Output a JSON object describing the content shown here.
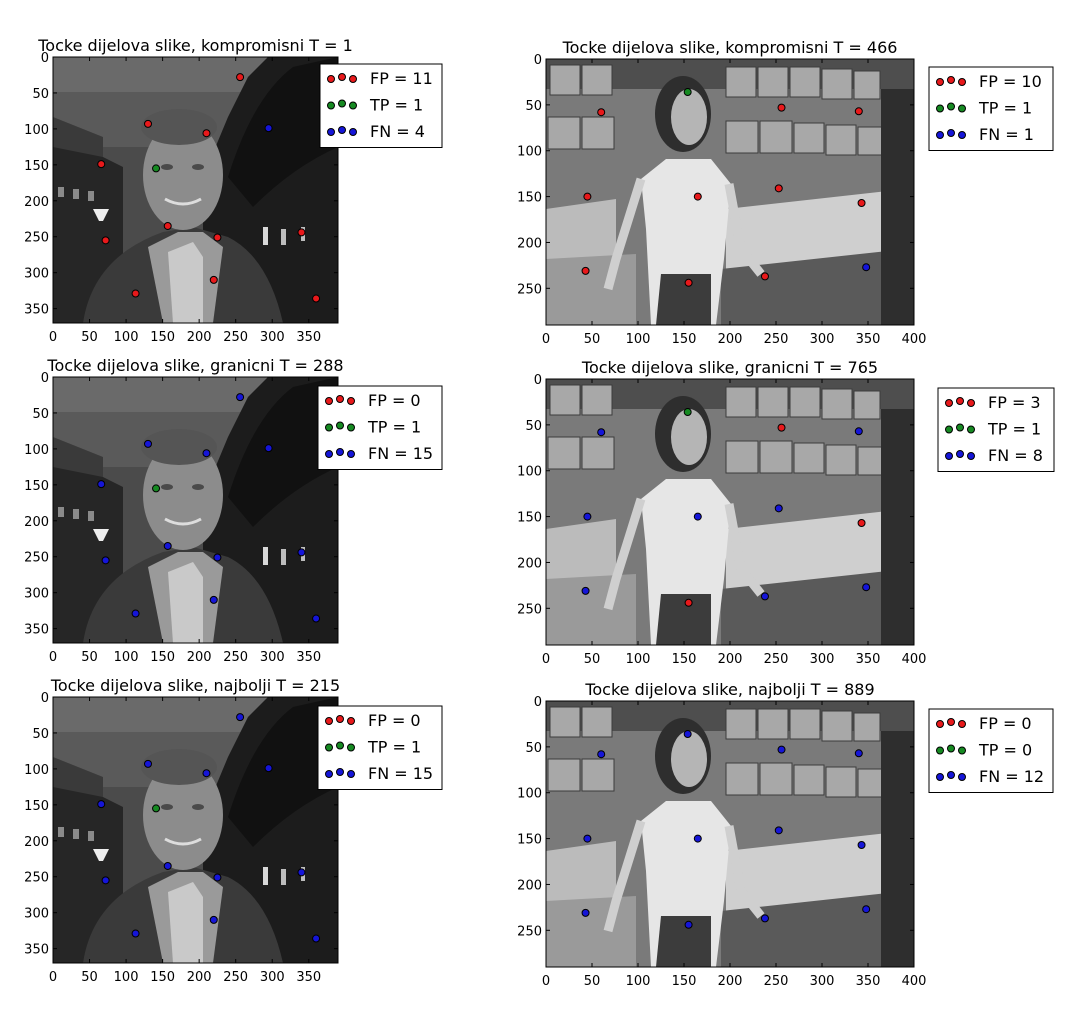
{
  "colors": {
    "FP": "#e8191b",
    "TP": "#168a22",
    "FN": "#1515d8"
  },
  "chart_data": [
    {
      "type": "scatter",
      "title": "Tocke dijelova slike, kompromisni T = 1",
      "background": "grayscale photo of a smiling man at dusk",
      "xlim": [
        0,
        390
      ],
      "ylim": [
        370,
        0
      ],
      "xticks": [
        0,
        50,
        100,
        150,
        200,
        250,
        300,
        350
      ],
      "yticks": [
        0,
        50,
        100,
        150,
        200,
        250,
        300,
        350
      ],
      "legend": [
        {
          "key": "FP",
          "label": "FP = 11"
        },
        {
          "key": "TP",
          "label": "TP = 1"
        },
        {
          "key": "FN",
          "label": "FN = 4"
        }
      ],
      "points": [
        {
          "x": 256,
          "y": 28,
          "cls": "FP"
        },
        {
          "x": 130,
          "y": 93,
          "cls": "FP"
        },
        {
          "x": 210,
          "y": 106,
          "cls": "FP"
        },
        {
          "x": 66,
          "y": 149,
          "cls": "FP"
        },
        {
          "x": 157,
          "y": 235,
          "cls": "FP"
        },
        {
          "x": 225,
          "y": 251,
          "cls": "FP"
        },
        {
          "x": 72,
          "y": 255,
          "cls": "FP"
        },
        {
          "x": 340,
          "y": 244,
          "cls": "FP"
        },
        {
          "x": 220,
          "y": 310,
          "cls": "FP"
        },
        {
          "x": 113,
          "y": 329,
          "cls": "FP"
        },
        {
          "x": 360,
          "y": 336,
          "cls": "FP"
        },
        {
          "x": 141,
          "y": 155,
          "cls": "TP"
        },
        {
          "x": 295,
          "y": 99,
          "cls": "FN"
        }
      ]
    },
    {
      "type": "scatter",
      "title": "Tocke dijelova slike, kompromisni T = 466",
      "background": "grayscale photo of a woman in a record store",
      "xlim": [
        0,
        400
      ],
      "ylim": [
        290,
        0
      ],
      "xticks": [
        0,
        50,
        100,
        150,
        200,
        250,
        300,
        350,
        400
      ],
      "yticks": [
        0,
        50,
        100,
        150,
        200,
        250
      ],
      "legend": [
        {
          "key": "FP",
          "label": "FP = 10"
        },
        {
          "key": "TP",
          "label": "TP = 1"
        },
        {
          "key": "FN",
          "label": "FN = 1"
        }
      ],
      "points": [
        {
          "x": 60,
          "y": 58,
          "cls": "FP"
        },
        {
          "x": 256,
          "y": 53,
          "cls": "FP"
        },
        {
          "x": 340,
          "y": 57,
          "cls": "FP"
        },
        {
          "x": 45,
          "y": 150,
          "cls": "FP"
        },
        {
          "x": 165,
          "y": 150,
          "cls": "FP"
        },
        {
          "x": 253,
          "y": 141,
          "cls": "FP"
        },
        {
          "x": 343,
          "y": 157,
          "cls": "FP"
        },
        {
          "x": 43,
          "y": 231,
          "cls": "FP"
        },
        {
          "x": 238,
          "y": 237,
          "cls": "FP"
        },
        {
          "x": 155,
          "y": 244,
          "cls": "FP"
        },
        {
          "x": 154,
          "y": 36,
          "cls": "TP"
        },
        {
          "x": 348,
          "y": 227,
          "cls": "FN"
        }
      ]
    },
    {
      "type": "scatter",
      "title": "Tocke dijelova slike, granicni T = 288",
      "background": "grayscale photo of a smiling man at dusk",
      "xlim": [
        0,
        390
      ],
      "ylim": [
        370,
        0
      ],
      "xticks": [
        0,
        50,
        100,
        150,
        200,
        250,
        300,
        350
      ],
      "yticks": [
        0,
        50,
        100,
        150,
        200,
        250,
        300,
        350
      ],
      "legend": [
        {
          "key": "FP",
          "label": "FP = 0"
        },
        {
          "key": "TP",
          "label": "TP = 1"
        },
        {
          "key": "FN",
          "label": "FN = 15"
        }
      ],
      "points": [
        {
          "x": 141,
          "y": 155,
          "cls": "TP"
        },
        {
          "x": 256,
          "y": 28,
          "cls": "FN"
        },
        {
          "x": 130,
          "y": 93,
          "cls": "FN"
        },
        {
          "x": 210,
          "y": 106,
          "cls": "FN"
        },
        {
          "x": 295,
          "y": 99,
          "cls": "FN"
        },
        {
          "x": 66,
          "y": 149,
          "cls": "FN"
        },
        {
          "x": 157,
          "y": 235,
          "cls": "FN"
        },
        {
          "x": 225,
          "y": 251,
          "cls": "FN"
        },
        {
          "x": 72,
          "y": 255,
          "cls": "FN"
        },
        {
          "x": 340,
          "y": 244,
          "cls": "FN"
        },
        {
          "x": 220,
          "y": 310,
          "cls": "FN"
        },
        {
          "x": 113,
          "y": 329,
          "cls": "FN"
        },
        {
          "x": 360,
          "y": 336,
          "cls": "FN"
        }
      ]
    },
    {
      "type": "scatter",
      "title": "Tocke dijelova slike, granicni T = 765",
      "background": "grayscale photo of a woman in a record store",
      "xlim": [
        0,
        400
      ],
      "ylim": [
        290,
        0
      ],
      "xticks": [
        0,
        50,
        100,
        150,
        200,
        250,
        300,
        350,
        400
      ],
      "yticks": [
        0,
        50,
        100,
        150,
        200,
        250
      ],
      "legend": [
        {
          "key": "FP",
          "label": "FP = 3"
        },
        {
          "key": "TP",
          "label": "TP = 1"
        },
        {
          "key": "FN",
          "label": "FN = 8"
        }
      ],
      "points": [
        {
          "x": 256,
          "y": 53,
          "cls": "FP"
        },
        {
          "x": 343,
          "y": 157,
          "cls": "FP"
        },
        {
          "x": 155,
          "y": 244,
          "cls": "FP"
        },
        {
          "x": 154,
          "y": 36,
          "cls": "TP"
        },
        {
          "x": 60,
          "y": 58,
          "cls": "FN"
        },
        {
          "x": 340,
          "y": 57,
          "cls": "FN"
        },
        {
          "x": 45,
          "y": 150,
          "cls": "FN"
        },
        {
          "x": 165,
          "y": 150,
          "cls": "FN"
        },
        {
          "x": 253,
          "y": 141,
          "cls": "FN"
        },
        {
          "x": 43,
          "y": 231,
          "cls": "FN"
        },
        {
          "x": 238,
          "y": 237,
          "cls": "FN"
        },
        {
          "x": 348,
          "y": 227,
          "cls": "FN"
        }
      ]
    },
    {
      "type": "scatter",
      "title": "Tocke dijelova slike, najbolji T = 215",
      "background": "grayscale photo of a smiling man at dusk",
      "xlim": [
        0,
        390
      ],
      "ylim": [
        370,
        0
      ],
      "xticks": [
        0,
        50,
        100,
        150,
        200,
        250,
        300,
        350
      ],
      "yticks": [
        0,
        50,
        100,
        150,
        200,
        250,
        300,
        350
      ],
      "legend": [
        {
          "key": "FP",
          "label": "FP = 0"
        },
        {
          "key": "TP",
          "label": "TP = 1"
        },
        {
          "key": "FN",
          "label": "FN = 15"
        }
      ],
      "points": [
        {
          "x": 141,
          "y": 155,
          "cls": "TP"
        },
        {
          "x": 256,
          "y": 28,
          "cls": "FN"
        },
        {
          "x": 130,
          "y": 93,
          "cls": "FN"
        },
        {
          "x": 210,
          "y": 106,
          "cls": "FN"
        },
        {
          "x": 295,
          "y": 99,
          "cls": "FN"
        },
        {
          "x": 66,
          "y": 149,
          "cls": "FN"
        },
        {
          "x": 157,
          "y": 235,
          "cls": "FN"
        },
        {
          "x": 225,
          "y": 251,
          "cls": "FN"
        },
        {
          "x": 72,
          "y": 255,
          "cls": "FN"
        },
        {
          "x": 340,
          "y": 244,
          "cls": "FN"
        },
        {
          "x": 220,
          "y": 310,
          "cls": "FN"
        },
        {
          "x": 113,
          "y": 329,
          "cls": "FN"
        },
        {
          "x": 360,
          "y": 336,
          "cls": "FN"
        }
      ]
    },
    {
      "type": "scatter",
      "title": "Tocke dijelova slike, najbolji T = 889",
      "background": "grayscale photo of a woman in a record store",
      "xlim": [
        0,
        400
      ],
      "ylim": [
        290,
        0
      ],
      "xticks": [
        0,
        50,
        100,
        150,
        200,
        250,
        300,
        350,
        400
      ],
      "yticks": [
        0,
        50,
        100,
        150,
        200,
        250
      ],
      "legend": [
        {
          "key": "FP",
          "label": "FP = 0"
        },
        {
          "key": "TP",
          "label": "TP = 0"
        },
        {
          "key": "FN",
          "label": "FN = 12"
        }
      ],
      "points": [
        {
          "x": 154,
          "y": 36,
          "cls": "FN"
        },
        {
          "x": 60,
          "y": 58,
          "cls": "FN"
        },
        {
          "x": 256,
          "y": 53,
          "cls": "FN"
        },
        {
          "x": 340,
          "y": 57,
          "cls": "FN"
        },
        {
          "x": 45,
          "y": 150,
          "cls": "FN"
        },
        {
          "x": 165,
          "y": 150,
          "cls": "FN"
        },
        {
          "x": 253,
          "y": 141,
          "cls": "FN"
        },
        {
          "x": 343,
          "y": 157,
          "cls": "FN"
        },
        {
          "x": 43,
          "y": 231,
          "cls": "FN"
        },
        {
          "x": 238,
          "y": 237,
          "cls": "FN"
        },
        {
          "x": 155,
          "y": 244,
          "cls": "FN"
        },
        {
          "x": 348,
          "y": 227,
          "cls": "FN"
        }
      ]
    }
  ]
}
